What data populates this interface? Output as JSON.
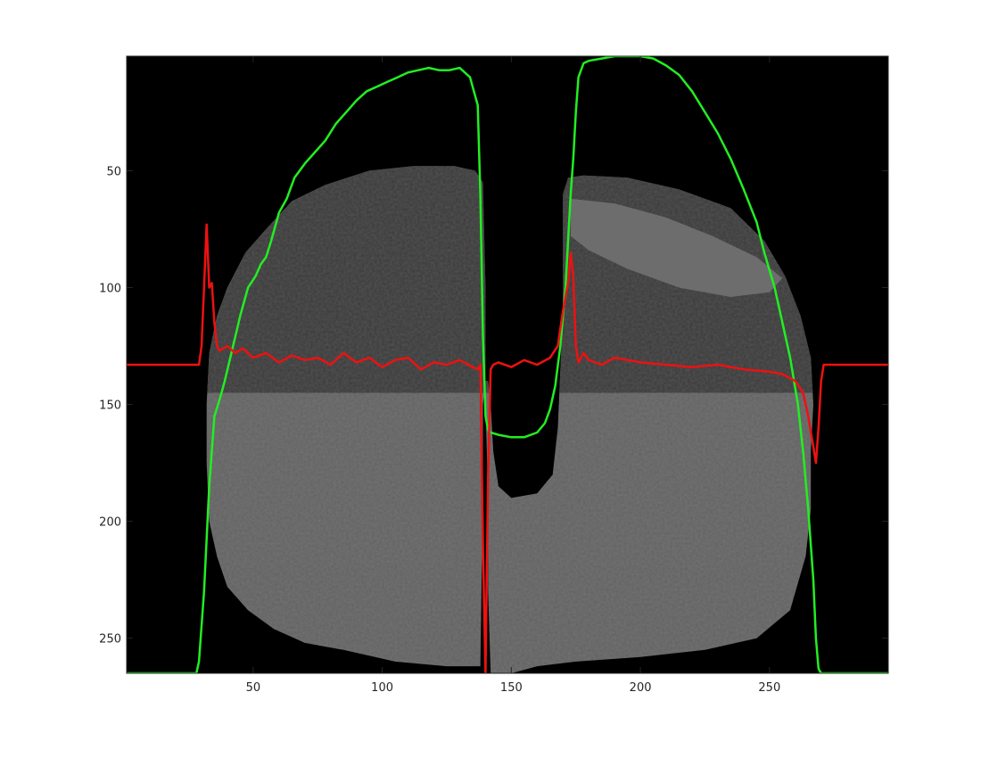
{
  "chart_data": {
    "type": "line",
    "background": "image",
    "xlim": [
      1,
      296
    ],
    "ylim": [
      1,
      265
    ],
    "y_direction": "reversed",
    "xticks": [
      50,
      100,
      150,
      200,
      250
    ],
    "yticks": [
      50,
      100,
      150,
      200,
      250
    ],
    "grid": false,
    "colors": {
      "axes_bg": "#000000",
      "tick_text": "#262626",
      "image_dark": "#3a3a3a",
      "image_light": "#626262"
    },
    "series": [
      {
        "color": "#22ee22",
        "x": [
          1,
          28,
          29,
          31,
          33,
          35,
          37,
          39,
          42,
          45,
          48,
          51,
          53,
          55,
          57,
          60,
          63,
          66,
          70,
          74,
          78,
          82,
          86,
          90,
          94,
          98,
          102,
          106,
          110,
          114,
          118,
          122,
          126,
          130,
          134,
          137,
          138,
          139,
          140,
          141,
          142,
          145,
          150,
          155,
          160,
          163,
          165,
          167,
          169,
          171,
          172,
          173,
          174,
          175,
          176,
          178,
          180,
          185,
          190,
          195,
          200,
          205,
          210,
          215,
          220,
          225,
          230,
          235,
          240,
          245,
          248,
          252,
          255,
          258,
          261,
          263,
          265,
          267,
          268,
          269,
          270,
          275,
          296
        ],
        "y": [
          265,
          265,
          260,
          230,
          185,
          155,
          148,
          140,
          126,
          112,
          100,
          95,
          90,
          87,
          80,
          68,
          62,
          53,
          47,
          42,
          37,
          30,
          25,
          20,
          16,
          14,
          12,
          10,
          8,
          7,
          6,
          7,
          7,
          6,
          10,
          22,
          60,
          120,
          155,
          161,
          162,
          163,
          164,
          164,
          162,
          158,
          152,
          142,
          125,
          100,
          80,
          60,
          45,
          25,
          10,
          4,
          3,
          2,
          1,
          1,
          1,
          2,
          5,
          9,
          16,
          25,
          34,
          45,
          58,
          72,
          85,
          100,
          115,
          130,
          150,
          170,
          195,
          225,
          250,
          263,
          265,
          265,
          265
        ]
      },
      {
        "color": "#ee1111",
        "x": [
          1,
          29,
          30,
          31,
          32,
          33,
          34,
          35,
          36,
          37,
          40,
          43,
          46,
          50,
          55,
          60,
          65,
          70,
          75,
          80,
          85,
          90,
          95,
          100,
          105,
          110,
          115,
          120,
          125,
          130,
          135,
          137,
          138,
          139,
          140,
          141,
          142,
          143,
          145,
          150,
          155,
          160,
          165,
          168,
          170,
          172,
          173,
          174,
          175,
          176,
          178,
          180,
          185,
          190,
          200,
          210,
          220,
          230,
          240,
          250,
          255,
          260,
          263,
          265,
          266,
          267,
          268,
          269,
          270,
          271,
          296
        ],
        "y": [
          133,
          133,
          125,
          100,
          73,
          100,
          98,
          115,
          125,
          127,
          125,
          128,
          126,
          130,
          128,
          132,
          129,
          131,
          130,
          133,
          128,
          132,
          130,
          134,
          131,
          130,
          135,
          132,
          133,
          131,
          134,
          135,
          133,
          210,
          265,
          180,
          135,
          133,
          132,
          134,
          131,
          133,
          130,
          125,
          110,
          98,
          85,
          95,
          125,
          132,
          128,
          131,
          133,
          130,
          132,
          133,
          134,
          133,
          135,
          136,
          137,
          140,
          145,
          155,
          162,
          168,
          175,
          160,
          140,
          133,
          133
        ]
      }
    ]
  }
}
